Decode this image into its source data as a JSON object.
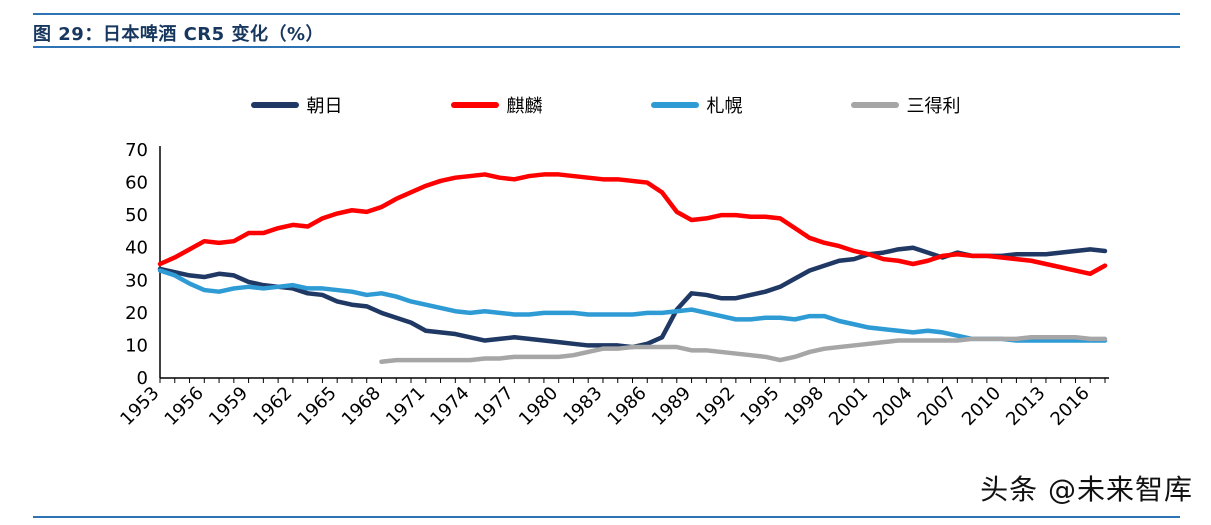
{
  "header": {
    "title": "图 29：日本啤酒 CR5 变化（%）"
  },
  "watermark": "头条 @未来智库",
  "colors": {
    "accent_line": "#2E74B5",
    "title_text": "#17375E",
    "axis": "#000000"
  },
  "chart_data": {
    "type": "line",
    "title": "日本啤酒 CR5 变化（%）",
    "xlabel": "",
    "ylabel": "",
    "x_start": 1953,
    "x_end": 2017,
    "ylim": [
      0,
      70
    ],
    "y_ticks": [
      0,
      10,
      20,
      30,
      40,
      50,
      60,
      70
    ],
    "x_ticks": [
      1953,
      1956,
      1959,
      1962,
      1965,
      1968,
      1971,
      1974,
      1977,
      1980,
      1983,
      1986,
      1989,
      1992,
      1995,
      1998,
      2001,
      2004,
      2007,
      2010,
      2013,
      2016
    ],
    "grid": false,
    "legend_position": "top",
    "series": [
      {
        "name": "朝日",
        "color": "#1F3864",
        "start_year": 1953,
        "values": [
          33.5,
          32.5,
          31.5,
          31,
          32,
          31.5,
          29.5,
          28.5,
          28,
          27.5,
          26,
          25.5,
          23.5,
          22.5,
          22,
          20,
          18.5,
          17,
          14.5,
          14,
          13.5,
          12.5,
          11.5,
          12,
          12.5,
          12,
          11.5,
          11,
          10.5,
          10,
          10,
          10,
          9.5,
          10.5,
          12.5,
          21,
          26,
          25.5,
          24.5,
          24.5,
          25.5,
          26.5,
          28,
          30.5,
          33,
          34.5,
          36,
          36.5,
          38,
          38.5,
          39.5,
          40,
          38.5,
          37,
          38.5,
          37.5,
          37.5,
          37.5,
          38,
          38,
          38,
          38.5,
          39,
          39.5,
          39
        ]
      },
      {
        "name": "麒麟",
        "color": "#FF0000",
        "start_year": 1953,
        "values": [
          35,
          37,
          39.5,
          42,
          41.5,
          42,
          44.5,
          44.5,
          46,
          47,
          46.5,
          49,
          50.5,
          51.5,
          51,
          52.5,
          55,
          57,
          59,
          60.5,
          61.5,
          62,
          62.5,
          61.5,
          61,
          62,
          62.5,
          62.5,
          62,
          61.5,
          61,
          61,
          60.5,
          60,
          57,
          51,
          48.5,
          49,
          50,
          50,
          49.5,
          49.5,
          49,
          46,
          43,
          41.5,
          40.5,
          39,
          38,
          36.5,
          36,
          35,
          36,
          37.5,
          38,
          37.5,
          37.5,
          37,
          36.5,
          36,
          35,
          34,
          33,
          32,
          34.5
        ]
      },
      {
        "name": "札幌",
        "color": "#2E9BD5",
        "start_year": 1953,
        "values": [
          33,
          31.5,
          29,
          27,
          26.5,
          27.5,
          28,
          27.5,
          28,
          28.5,
          27.5,
          27.5,
          27,
          26.5,
          25.5,
          26,
          25,
          23.5,
          22.5,
          21.5,
          20.5,
          20,
          20.5,
          20,
          19.5,
          19.5,
          20,
          20,
          20,
          19.5,
          19.5,
          19.5,
          19.5,
          20,
          20,
          20.5,
          21,
          20,
          19,
          18,
          18,
          18.5,
          18.5,
          18,
          19,
          19,
          17.5,
          16.5,
          15.5,
          15,
          14.5,
          14,
          14.5,
          14,
          13,
          12,
          12,
          12,
          11.5,
          11.5,
          11.5,
          11.5,
          11.5,
          11.5,
          11.5
        ]
      },
      {
        "name": "三得利",
        "color": "#A6A6A6",
        "start_year": 1968,
        "values": [
          5,
          5.5,
          5.5,
          5.5,
          5.5,
          5.5,
          5.5,
          6,
          6,
          6.5,
          6.5,
          6.5,
          6.5,
          7,
          8,
          9,
          9,
          9.5,
          9.5,
          9.5,
          9.5,
          8.5,
          8.5,
          8,
          7.5,
          7,
          6.5,
          5.5,
          6.5,
          8,
          9,
          9.5,
          10,
          10.5,
          11,
          11.5,
          11.5,
          11.5,
          11.5,
          11.5,
          12,
          12,
          12,
          12,
          12.5,
          12.5,
          12.5,
          12.5,
          12,
          12
        ]
      }
    ]
  }
}
